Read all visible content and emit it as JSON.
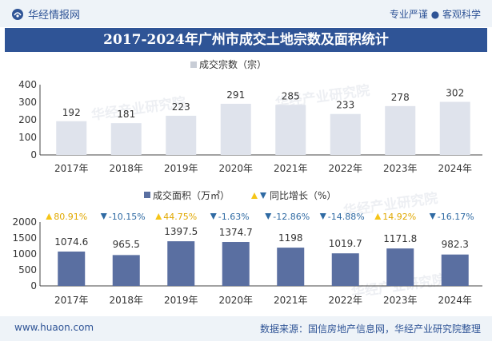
{
  "header": {
    "brand": "华经情报网",
    "slogan": "专业严谨 ● 客观科学"
  },
  "title": "2017-2024年广州市成交土地宗数及面积统计",
  "footer": {
    "site": "www.huaon.com",
    "source": "数据来源：国信房地产信息网，华经产业研究院整理"
  },
  "watermark": "华经产业研究院",
  "chart_data": [
    {
      "type": "bar",
      "legend": "成交宗数（宗）",
      "categories": [
        "2017年",
        "2018年",
        "2019年",
        "2020年",
        "2021年",
        "2022年",
        "2023年",
        "2024年"
      ],
      "values": [
        192,
        181,
        223,
        291,
        285,
        233,
        278,
        302
      ],
      "value_labels": [
        "192",
        "181",
        "223",
        "291",
        "285",
        "233",
        "278",
        "302"
      ],
      "ylim": [
        0,
        400
      ],
      "yticks": [
        "0",
        "100",
        "200",
        "300",
        "400"
      ],
      "bar_color": "#dfe3ec"
    },
    {
      "type": "bar",
      "legend": "成交面积（万㎡）",
      "legend2": "同比增长（%）",
      "categories": [
        "2017年",
        "2018年",
        "2019年",
        "2020年",
        "2021年",
        "2022年",
        "2023年",
        "2024年"
      ],
      "values": [
        1074.6,
        965.5,
        1397.5,
        1374.7,
        1198,
        1019.7,
        1171.8,
        982.3
      ],
      "value_labels": [
        "1074.6",
        "965.5",
        "1397.5",
        "1374.7",
        "1198",
        "1019.7",
        "1171.8",
        "982.3"
      ],
      "growth": [
        80.91,
        -10.15,
        44.75,
        -1.63,
        -12.86,
        -14.88,
        14.92,
        -16.17
      ],
      "growth_labels": [
        "80.91%",
        "-10.15%",
        "44.75%",
        "-1.63%",
        "-12.86%",
        "-14.88%",
        "14.92%",
        "-16.17%"
      ],
      "ylim": [
        0,
        2000
      ],
      "yticks": [
        "0",
        "500",
        "1000",
        "1500",
        "2000"
      ],
      "bar_color": "#5a6fa1",
      "up_color": "#f5c518",
      "down_color": "#2f6aa3"
    }
  ]
}
